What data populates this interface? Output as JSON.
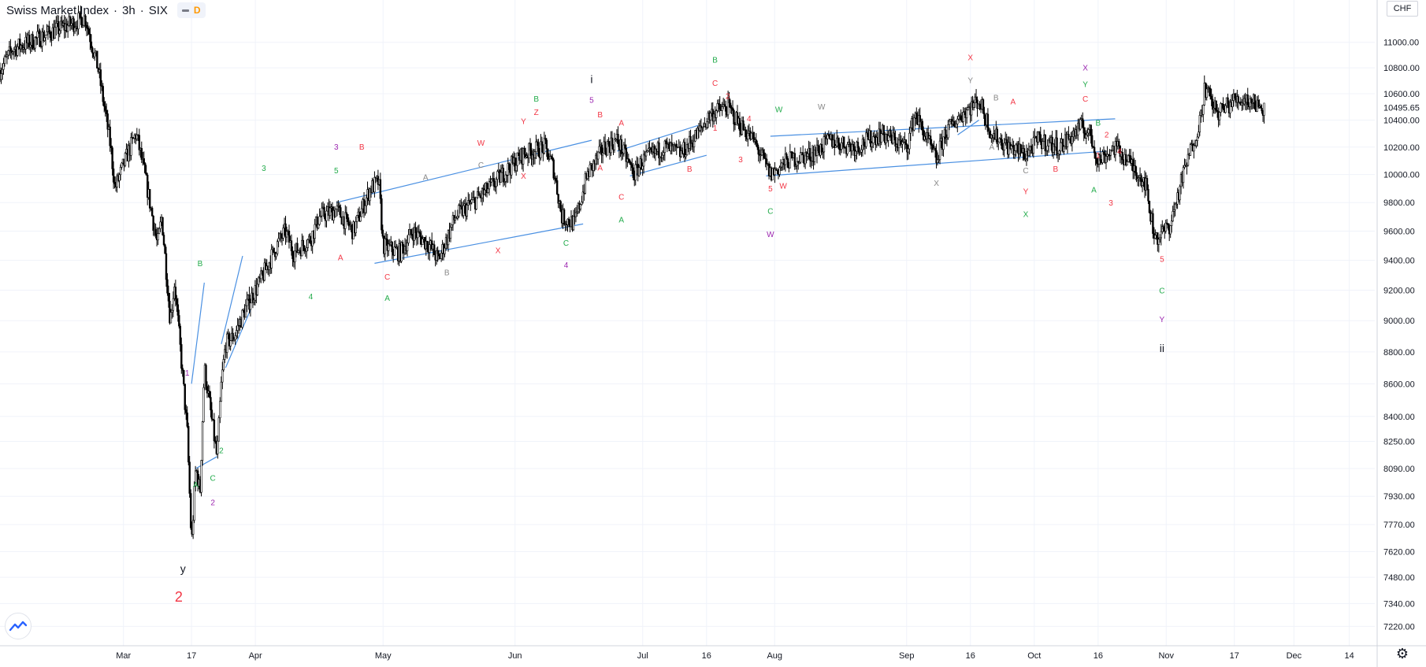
{
  "legend": {
    "symbol": "Swiss Market Index",
    "interval": "3h",
    "exchange": "SIX",
    "separator": "·",
    "badge": "D"
  },
  "currency": "CHF",
  "colors": {
    "candle": "#000000",
    "trendline": "#4a90e2",
    "red": "#f23645",
    "green": "#22ab4b",
    "gray": "#888888",
    "purple": "#9c27b0",
    "black": "#131722",
    "price_badge_bg": "#ffffff"
  },
  "icons": {
    "logo": "tradingview-logo-icon",
    "settings": "gear-icon"
  },
  "chart_data": {
    "type": "candlestick",
    "title": "Swiss Market Index · 3h · SIX",
    "ylabel": "CHF",
    "y_scale": "log",
    "ylim": [
      7120,
      11200
    ],
    "xlim": [
      "2020-02-01",
      "2020-12-20"
    ],
    "y_ticks": [
      11000,
      10800,
      10600,
      10400,
      10200,
      10000,
      9800,
      9600,
      9400,
      9200,
      9000,
      8800,
      8600,
      8400,
      8250,
      8090,
      7930,
      7770,
      7620,
      7480,
      7340,
      7220
    ],
    "y_tick_labels": [
      "11000.00",
      "10800.00",
      "10600.00",
      "10400.00",
      "10200.00",
      "10000.00",
      "9800.00",
      "9600.00",
      "9400.00",
      "9200.00",
      "9000.00",
      "8800.00",
      "8600.00",
      "8400.00",
      "8250.00",
      "8090.00",
      "7930.00",
      "7770.00",
      "7620.00",
      "7480.00",
      "7340.00",
      "7220.00"
    ],
    "last_price": 10495.65,
    "last_price_label": "10495.65",
    "x_ticks": [
      {
        "label": "Mar",
        "date": "2020-03-01"
      },
      {
        "label": "17",
        "date": "2020-03-17"
      },
      {
        "label": "Apr",
        "date": "2020-04-01"
      },
      {
        "label": "May",
        "date": "2020-05-01"
      },
      {
        "label": "Jun",
        "date": "2020-06-01"
      },
      {
        "label": "Jul",
        "date": "2020-07-01"
      },
      {
        "label": "16",
        "date": "2020-07-16"
      },
      {
        "label": "Aug",
        "date": "2020-08-01"
      },
      {
        "label": "Sep",
        "date": "2020-09-01"
      },
      {
        "label": "16",
        "date": "2020-09-16"
      },
      {
        "label": "Oct",
        "date": "2020-10-01"
      },
      {
        "label": "16",
        "date": "2020-10-16"
      },
      {
        "label": "Nov",
        "date": "2020-11-01"
      },
      {
        "label": "17",
        "date": "2020-11-17"
      },
      {
        "label": "Dec",
        "date": "2020-12-01"
      },
      {
        "label": "14",
        "date": "2020-12-14"
      }
    ],
    "price_path": [
      [
        "2020-02-01",
        10780
      ],
      [
        "2020-02-04",
        10950
      ],
      [
        "2020-02-08",
        11000
      ],
      [
        "2020-02-13",
        11080
      ],
      [
        "2020-02-18",
        11150
      ],
      [
        "2020-02-21",
        11200
      ],
      [
        "2020-02-24",
        10800
      ],
      [
        "2020-02-25",
        10600
      ],
      [
        "2020-02-27",
        10200
      ],
      [
        "2020-02-28",
        9900
      ],
      [
        "2020-03-02",
        10150
      ],
      [
        "2020-03-04",
        10300
      ],
      [
        "2020-03-06",
        10000
      ],
      [
        "2020-03-09",
        9500
      ],
      [
        "2020-03-10",
        9700
      ],
      [
        "2020-03-12",
        9000
      ],
      [
        "2020-03-13",
        9250
      ],
      [
        "2020-03-16",
        8300
      ],
      [
        "2020-03-17",
        7650
      ],
      [
        "2020-03-18",
        8100
      ],
      [
        "2020-03-19",
        7950
      ],
      [
        "2020-03-20",
        8700
      ],
      [
        "2020-03-23",
        8150
      ],
      [
        "2020-03-24",
        8600
      ],
      [
        "2020-03-25",
        8850
      ],
      [
        "2020-03-27",
        8900
      ],
      [
        "2020-03-30",
        9100
      ],
      [
        "2020-04-02",
        9250
      ],
      [
        "2020-04-06",
        9500
      ],
      [
        "2020-04-08",
        9600
      ],
      [
        "2020-04-10",
        9450
      ],
      [
        "2020-04-14",
        9550
      ],
      [
        "2020-04-16",
        9700
      ],
      [
        "2020-04-20",
        9750
      ],
      [
        "2020-04-24",
        9600
      ],
      [
        "2020-04-28",
        9900
      ],
      [
        "2020-04-30",
        9950
      ],
      [
        "2020-05-01",
        9500
      ],
      [
        "2020-05-05",
        9450
      ],
      [
        "2020-05-08",
        9600
      ],
      [
        "2020-05-12",
        9500
      ],
      [
        "2020-05-14",
        9400
      ],
      [
        "2020-05-18",
        9700
      ],
      [
        "2020-05-22",
        9800
      ],
      [
        "2020-05-26",
        9900
      ],
      [
        "2020-05-29",
        10000
      ],
      [
        "2020-06-03",
        10150
      ],
      [
        "2020-06-08",
        10200
      ],
      [
        "2020-06-10",
        10050
      ],
      [
        "2020-06-12",
        9700
      ],
      [
        "2020-06-15",
        9650
      ],
      [
        "2020-06-18",
        10000
      ],
      [
        "2020-06-22",
        10200
      ],
      [
        "2020-06-25",
        10250
      ],
      [
        "2020-06-29",
        10000
      ],
      [
        "2020-07-01",
        10100
      ],
      [
        "2020-07-06",
        10200
      ],
      [
        "2020-07-10",
        10150
      ],
      [
        "2020-07-14",
        10300
      ],
      [
        "2020-07-17",
        10450
      ],
      [
        "2020-07-21",
        10500
      ],
      [
        "2020-07-23",
        10400
      ],
      [
        "2020-07-27",
        10250
      ],
      [
        "2020-07-31",
        10000
      ],
      [
        "2020-08-04",
        10100
      ],
      [
        "2020-08-10",
        10150
      ],
      [
        "2020-08-14",
        10250
      ],
      [
        "2020-08-20",
        10200
      ],
      [
        "2020-08-26",
        10300
      ],
      [
        "2020-09-01",
        10200
      ],
      [
        "2020-09-03",
        10450
      ],
      [
        "2020-09-08",
        10100
      ],
      [
        "2020-09-10",
        10300
      ],
      [
        "2020-09-14",
        10450
      ],
      [
        "2020-09-18",
        10550
      ],
      [
        "2020-09-21",
        10300
      ],
      [
        "2020-09-25",
        10200
      ],
      [
        "2020-09-29",
        10150
      ],
      [
        "2020-10-02",
        10250
      ],
      [
        "2020-10-07",
        10200
      ],
      [
        "2020-10-12",
        10350
      ],
      [
        "2020-10-14",
        10300
      ],
      [
        "2020-10-16",
        10100
      ],
      [
        "2020-10-20",
        10200
      ],
      [
        "2020-10-23",
        10100
      ],
      [
        "2020-10-27",
        9950
      ],
      [
        "2020-10-29",
        9600
      ],
      [
        "2020-10-30",
        9550
      ],
      [
        "2020-11-02",
        9650
      ],
      [
        "2020-11-05",
        10000
      ],
      [
        "2020-11-09",
        10400
      ],
      [
        "2020-11-10",
        10650
      ],
      [
        "2020-11-13",
        10450
      ],
      [
        "2020-11-17",
        10550
      ],
      [
        "2020-11-20",
        10560
      ],
      [
        "2020-11-24",
        10490
      ]
    ],
    "trendlines": [
      {
        "from": [
          "2020-03-17",
          8600
        ],
        "to": [
          "2020-03-20",
          9250
        ]
      },
      {
        "from": [
          "2020-03-18",
          8090
        ],
        "to": [
          "2020-03-23",
          8160
        ]
      },
      {
        "from": [
          "2020-03-24",
          8850
        ],
        "to": [
          "2020-03-29",
          9430
        ]
      },
      {
        "from": [
          "2020-03-25",
          8700
        ],
        "to": [
          "2020-03-31",
          9080
        ]
      },
      {
        "from": [
          "2020-04-20",
          9800
        ],
        "to": [
          "2020-06-19",
          10250
        ]
      },
      {
        "from": [
          "2020-04-29",
          9380
        ],
        "to": [
          "2020-06-17",
          9650
        ]
      },
      {
        "from": [
          "2020-06-25",
          10170
        ],
        "to": [
          "2020-07-14",
          10360
        ]
      },
      {
        "from": [
          "2020-06-28",
          9990
        ],
        "to": [
          "2020-07-16",
          10140
        ]
      },
      {
        "from": [
          "2020-07-31",
          10280
        ],
        "to": [
          "2020-10-20",
          10410
        ]
      },
      {
        "from": [
          "2020-07-30",
          9990
        ],
        "to": [
          "2020-10-18",
          10170
        ]
      },
      {
        "from": [
          "2020-09-13",
          10290
        ],
        "to": [
          "2020-09-18",
          10400
        ]
      }
    ],
    "annotations": [
      {
        "text": "1",
        "date": "2020-03-16",
        "price": 8650,
        "color": "purple"
      },
      {
        "text": "B",
        "date": "2020-03-19",
        "price": 9360,
        "color": "green"
      },
      {
        "text": "2",
        "date": "2020-03-24",
        "price": 8180,
        "color": "green"
      },
      {
        "text": "A",
        "date": "2020-03-18",
        "price": 7980,
        "color": "green"
      },
      {
        "text": "C",
        "date": "2020-03-22",
        "price": 8020,
        "color": "green"
      },
      {
        "text": "2",
        "date": "2020-03-22",
        "price": 7880,
        "color": "purple"
      },
      {
        "text": "y",
        "date": "2020-03-15",
        "price": 7505,
        "color": "black"
      },
      {
        "text": "2",
        "date": "2020-03-14",
        "price": 7350,
        "color": "red",
        "big": true
      },
      {
        "text": "3",
        "date": "2020-04-03",
        "price": 10025,
        "color": "green"
      },
      {
        "text": "4",
        "date": "2020-04-14",
        "price": 9140,
        "color": "green"
      },
      {
        "text": "3",
        "date": "2020-04-20",
        "price": 10180,
        "color": "purple"
      },
      {
        "text": "5",
        "date": "2020-04-20",
        "price": 10010,
        "color": "green"
      },
      {
        "text": "A",
        "date": "2020-04-21",
        "price": 9400,
        "color": "red"
      },
      {
        "text": "B",
        "date": "2020-04-26",
        "price": 10180,
        "color": "red"
      },
      {
        "text": "C",
        "date": "2020-05-02",
        "price": 9270,
        "color": "red"
      },
      {
        "text": "A",
        "date": "2020-05-02",
        "price": 9130,
        "color": "green"
      },
      {
        "text": "A",
        "date": "2020-05-11",
        "price": 9960,
        "color": "gray"
      },
      {
        "text": "B",
        "date": "2020-05-16",
        "price": 9300,
        "color": "gray"
      },
      {
        "text": "C",
        "date": "2020-05-24",
        "price": 10050,
        "color": "gray"
      },
      {
        "text": "W",
        "date": "2020-05-24",
        "price": 10210,
        "color": "red"
      },
      {
        "text": "X",
        "date": "2020-05-28",
        "price": 9450,
        "color": "red"
      },
      {
        "text": "X",
        "date": "2020-06-03",
        "price": 9970,
        "color": "red"
      },
      {
        "text": "Y",
        "date": "2020-06-03",
        "price": 10370,
        "color": "red"
      },
      {
        "text": "Z",
        "date": "2020-06-06",
        "price": 10440,
        "color": "red"
      },
      {
        "text": "B",
        "date": "2020-06-06",
        "price": 10540,
        "color": "green"
      },
      {
        "text": "C",
        "date": "2020-06-13",
        "price": 9500,
        "color": "green"
      },
      {
        "text": "4",
        "date": "2020-06-13",
        "price": 9350,
        "color": "purple"
      },
      {
        "text": "i",
        "date": "2020-06-19",
        "price": 10680,
        "color": "black"
      },
      {
        "text": "5",
        "date": "2020-06-19",
        "price": 10530,
        "color": "purple"
      },
      {
        "text": "B",
        "date": "2020-06-21",
        "price": 10420,
        "color": "red"
      },
      {
        "text": "A",
        "date": "2020-06-26",
        "price": 10360,
        "color": "red"
      },
      {
        "text": "A",
        "date": "2020-06-21",
        "price": 10030,
        "color": "red"
      },
      {
        "text": "C",
        "date": "2020-06-26",
        "price": 9820,
        "color": "red"
      },
      {
        "text": "A",
        "date": "2020-06-26",
        "price": 9660,
        "color": "green"
      },
      {
        "text": "B",
        "date": "2020-07-12",
        "price": 10020,
        "color": "red"
      },
      {
        "text": "B",
        "date": "2020-07-18",
        "price": 10840,
        "color": "green"
      },
      {
        "text": "C",
        "date": "2020-07-18",
        "price": 10660,
        "color": "red"
      },
      {
        "text": "2",
        "date": "2020-07-21",
        "price": 10560,
        "color": "red"
      },
      {
        "text": "4",
        "date": "2020-07-26",
        "price": 10390,
        "color": "red"
      },
      {
        "text": "1",
        "date": "2020-07-18",
        "price": 10320,
        "color": "red"
      },
      {
        "text": "3",
        "date": "2020-07-24",
        "price": 10090,
        "color": "red"
      },
      {
        "text": "W",
        "date": "2020-08-02",
        "price": 10460,
        "color": "green"
      },
      {
        "text": "W",
        "date": "2020-08-12",
        "price": 10480,
        "color": "gray"
      },
      {
        "text": "5",
        "date": "2020-07-31",
        "price": 9880,
        "color": "red"
      },
      {
        "text": "W",
        "date": "2020-08-03",
        "price": 9900,
        "color": "red"
      },
      {
        "text": "C",
        "date": "2020-07-31",
        "price": 9720,
        "color": "green"
      },
      {
        "text": "W",
        "date": "2020-07-31",
        "price": 9560,
        "color": "purple"
      },
      {
        "text": "X",
        "date": "2020-09-08",
        "price": 9920,
        "color": "gray"
      },
      {
        "text": "X",
        "date": "2020-09-16",
        "price": 10860,
        "color": "red"
      },
      {
        "text": "Y",
        "date": "2020-09-16",
        "price": 10680,
        "color": "gray"
      },
      {
        "text": "B",
        "date": "2020-09-22",
        "price": 10550,
        "color": "gray"
      },
      {
        "text": "A",
        "date": "2020-09-26",
        "price": 10520,
        "color": "red"
      },
      {
        "text": "A",
        "date": "2020-09-21",
        "price": 10180,
        "color": "gray"
      },
      {
        "text": "C",
        "date": "2020-09-29",
        "price": 10010,
        "color": "gray"
      },
      {
        "text": "Y",
        "date": "2020-09-29",
        "price": 9860,
        "color": "red"
      },
      {
        "text": "X",
        "date": "2020-09-29",
        "price": 9700,
        "color": "green"
      },
      {
        "text": "B",
        "date": "2020-10-06",
        "price": 10020,
        "color": "red"
      },
      {
        "text": "X",
        "date": "2020-10-13",
        "price": 10780,
        "color": "purple"
      },
      {
        "text": "Y",
        "date": "2020-10-13",
        "price": 10650,
        "color": "green"
      },
      {
        "text": "C",
        "date": "2020-10-13",
        "price": 10540,
        "color": "red"
      },
      {
        "text": "B",
        "date": "2020-10-16",
        "price": 10360,
        "color": "green"
      },
      {
        "text": "2",
        "date": "2020-10-18",
        "price": 10270,
        "color": "red"
      },
      {
        "text": "1",
        "date": "2020-10-16",
        "price": 10120,
        "color": "red"
      },
      {
        "text": "4",
        "date": "2020-10-21",
        "price": 10150,
        "color": "red"
      },
      {
        "text": "A",
        "date": "2020-10-15",
        "price": 9870,
        "color": "green"
      },
      {
        "text": "3",
        "date": "2020-10-19",
        "price": 9780,
        "color": "red"
      },
      {
        "text": "5",
        "date": "2020-10-31",
        "price": 9390,
        "color": "red"
      },
      {
        "text": "C",
        "date": "2020-10-31",
        "price": 9180,
        "color": "green"
      },
      {
        "text": "Y",
        "date": "2020-10-31",
        "price": 8990,
        "color": "purple"
      },
      {
        "text": "ii",
        "date": "2020-10-31",
        "price": 8800,
        "color": "black"
      }
    ]
  }
}
